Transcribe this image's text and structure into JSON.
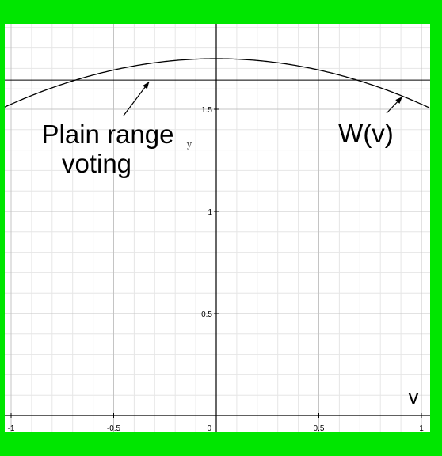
{
  "chart_data": {
    "type": "line",
    "xlabel": "v",
    "ylabel": "y",
    "xlim": [
      -1.05,
      1.05
    ],
    "ylim": [
      -0.03,
      1.92
    ],
    "grid": true,
    "x_ticks": [
      -1,
      -0.5,
      0,
      0.5,
      1
    ],
    "x_tick_labels": [
      "-1",
      "-0.5",
      "0",
      "0.5",
      "1"
    ],
    "y_ticks": [
      0.5,
      1,
      1.5
    ],
    "y_tick_labels": [
      "0.5",
      "1",
      "1.5"
    ],
    "series": [
      {
        "name": "W(v)",
        "x": [
          -1,
          -0.9,
          -0.8,
          -0.7,
          -0.6,
          -0.5,
          -0.4,
          -0.3,
          -0.2,
          -0.1,
          0,
          0.1,
          0.2,
          0.3,
          0.4,
          0.5,
          0.6,
          0.7,
          0.8,
          0.9,
          1
        ],
        "values": [
          1.525,
          1.566,
          1.602,
          1.635,
          1.664,
          1.689,
          1.71,
          1.726,
          1.738,
          1.746,
          1.748,
          1.746,
          1.738,
          1.726,
          1.71,
          1.689,
          1.664,
          1.635,
          1.602,
          1.566,
          1.525
        ],
        "color": "#000000"
      },
      {
        "name": "Plain range voting",
        "x": [
          -1,
          1
        ],
        "values": [
          1.643,
          1.643
        ],
        "color": "#000000"
      }
    ],
    "annotations": [
      {
        "text_lines": [
          "Plain range",
          "voting"
        ],
        "points_to": [
          -0.35,
          1.643
        ]
      },
      {
        "text_lines": [
          "W(v)"
        ],
        "points_to": [
          0.95,
          1.565
        ]
      }
    ],
    "colors": {
      "frame": "#00e600",
      "grid_major": "#c4c4c4",
      "grid_minor": "#e6e6e6"
    }
  }
}
